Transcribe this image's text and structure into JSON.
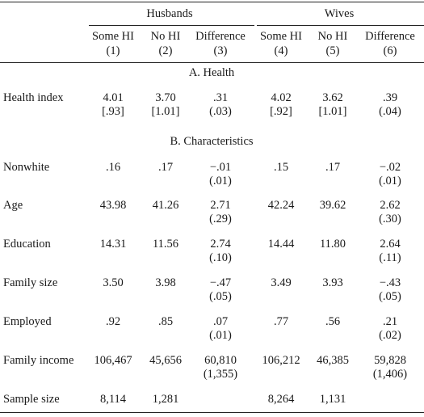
{
  "groups": [
    "Husbands",
    "Wives"
  ],
  "columns": [
    {
      "name": "Some HI",
      "num": "(1)"
    },
    {
      "name": "No HI",
      "num": "(2)"
    },
    {
      "name": "Difference",
      "num": "(3)"
    },
    {
      "name": "Some HI",
      "num": "(4)"
    },
    {
      "name": "No HI",
      "num": "(5)"
    },
    {
      "name": "Difference",
      "num": "(6)"
    }
  ],
  "sections": [
    "A. Health",
    "B. Characteristics"
  ],
  "rows": [
    {
      "label": "Health index",
      "values": [
        "4.01",
        "3.70",
        ".31",
        "4.02",
        "3.62",
        ".39"
      ],
      "sub": [
        "[.93]",
        "[1.01]",
        "(.03)",
        "[.92]",
        "[1.01]",
        "(.04)"
      ]
    },
    {
      "label": "Nonwhite",
      "values": [
        ".16",
        ".17",
        "−.01",
        ".15",
        ".17",
        "−.02"
      ],
      "sub": [
        "",
        "",
        "(.01)",
        "",
        "",
        "(.01)"
      ]
    },
    {
      "label": "Age",
      "values": [
        "43.98",
        "41.26",
        "2.71",
        "42.24",
        "39.62",
        "2.62"
      ],
      "sub": [
        "",
        "",
        "(.29)",
        "",
        "",
        "(.30)"
      ]
    },
    {
      "label": "Education",
      "values": [
        "14.31",
        "11.56",
        "2.74",
        "14.44",
        "11.80",
        "2.64"
      ],
      "sub": [
        "",
        "",
        "(.10)",
        "",
        "",
        "(.11)"
      ]
    },
    {
      "label": "Family size",
      "values": [
        "3.50",
        "3.98",
        "−.47",
        "3.49",
        "3.93",
        "−.43"
      ],
      "sub": [
        "",
        "",
        "(.05)",
        "",
        "",
        "(.05)"
      ]
    },
    {
      "label": "Employed",
      "values": [
        ".92",
        ".85",
        ".07",
        ".77",
        ".56",
        ".21"
      ],
      "sub": [
        "",
        "",
        "(.01)",
        "",
        "",
        "(.02)"
      ]
    },
    {
      "label": "Family income",
      "values": [
        "106,467",
        "45,656",
        "60,810",
        "106,212",
        "46,385",
        "59,828"
      ],
      "sub": [
        "",
        "",
        "(1,355)",
        "",
        "",
        "(1,406)"
      ]
    },
    {
      "label": "Sample size",
      "values": [
        "8,114",
        "1,281",
        "",
        "8,264",
        "1,131",
        ""
      ],
      "sub": [
        "",
        "",
        "",
        "",
        "",
        ""
      ]
    }
  ]
}
